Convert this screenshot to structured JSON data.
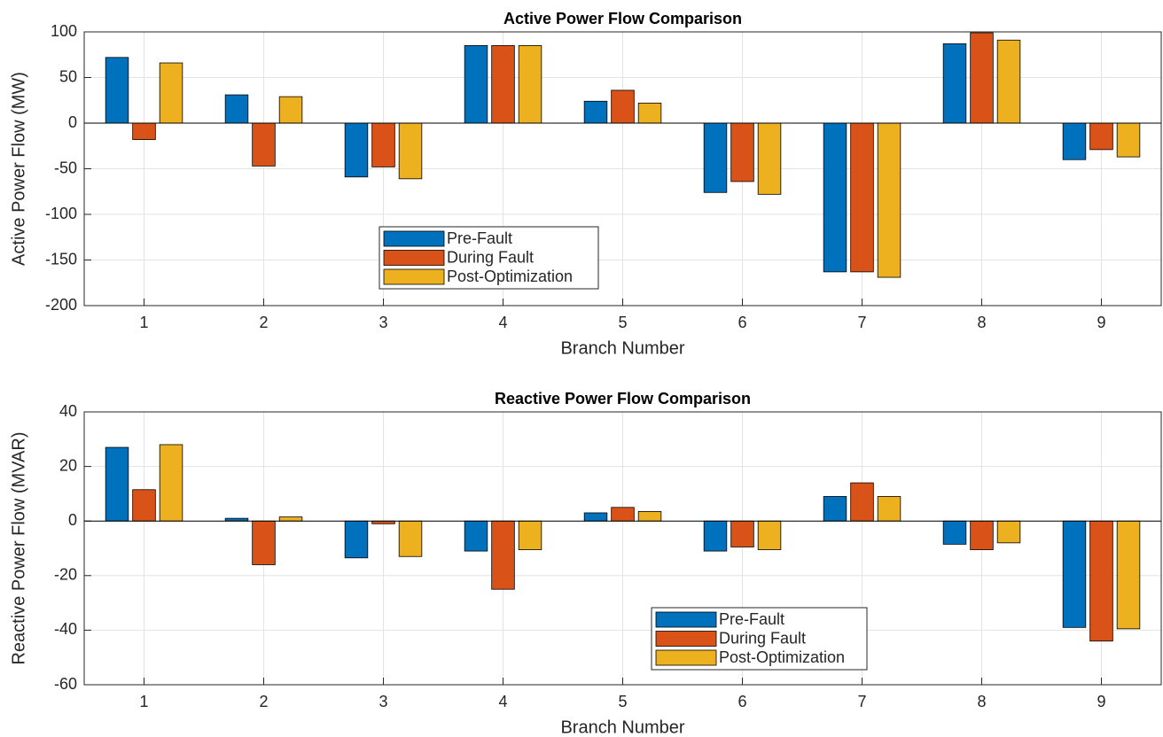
{
  "chart_data": [
    {
      "type": "bar",
      "title": "Active Power Flow Comparison",
      "xlabel": "Branch Number",
      "ylabel": "Active Power Flow (MW)",
      "categories": [
        "1",
        "2",
        "3",
        "4",
        "5",
        "6",
        "7",
        "8",
        "9"
      ],
      "series": [
        {
          "name": "Pre-Fault",
          "color": "#0072BD",
          "values": [
            72,
            31,
            -59,
            85,
            24,
            -76,
            -163,
            87,
            -40
          ]
        },
        {
          "name": "During Fault",
          "color": "#D95319",
          "values": [
            -18,
            -47,
            -48,
            85,
            36,
            -64,
            -163,
            99,
            -29
          ]
        },
        {
          "name": "Post-Optimization",
          "color": "#EDB120",
          "values": [
            66,
            29,
            -61,
            85,
            22,
            -78,
            -169,
            91,
            -37
          ]
        }
      ],
      "ylim": [
        -200,
        100
      ],
      "yticks": [
        -200,
        -150,
        -100,
        -50,
        0,
        50,
        100
      ],
      "grid": true,
      "legend": "south"
    },
    {
      "type": "bar",
      "title": "Reactive Power Flow Comparison",
      "xlabel": "Branch Number",
      "ylabel": "Reactive Power Flow (MVAR)",
      "categories": [
        "1",
        "2",
        "3",
        "4",
        "5",
        "6",
        "7",
        "8",
        "9"
      ],
      "series": [
        {
          "name": "Pre-Fault",
          "color": "#0072BD",
          "values": [
            27,
            1,
            -13.5,
            -11,
            3,
            -11,
            9,
            -8.5,
            -39
          ]
        },
        {
          "name": "During Fault",
          "color": "#D95319",
          "values": [
            11.5,
            -16,
            -1,
            -25,
            5,
            -9.5,
            14,
            -10.5,
            -44
          ]
        },
        {
          "name": "Post-Optimization",
          "color": "#EDB120",
          "values": [
            28,
            1.5,
            -13,
            -10.5,
            3.5,
            -10.5,
            9,
            -8,
            -39.5
          ]
        }
      ],
      "ylim": [
        -60,
        40
      ],
      "yticks": [
        -60,
        -40,
        -20,
        0,
        20,
        40
      ],
      "grid": true,
      "legend": "southeast"
    }
  ]
}
